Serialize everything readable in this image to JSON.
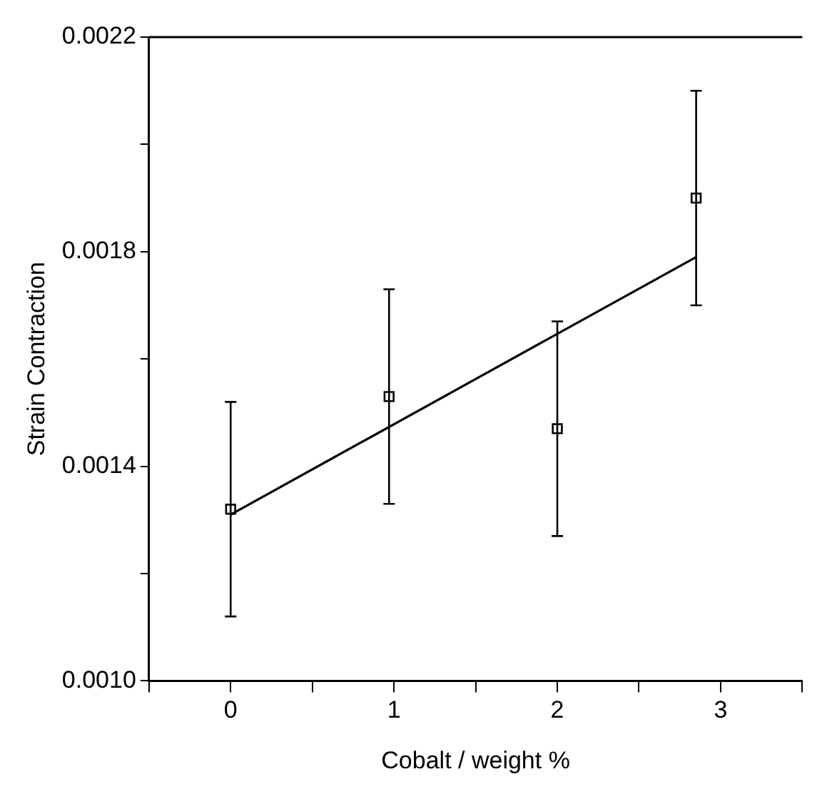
{
  "chart_data": {
    "type": "scatter",
    "xlabel": "Cobalt / weight %",
    "ylabel": "Strain Contraction",
    "xlim": [
      -0.5,
      3.5
    ],
    "ylim": [
      0.001,
      0.0022
    ],
    "xticks": [
      {
        "value": -0.5,
        "label": null
      },
      0,
      {
        "value": 0.5,
        "label": null
      },
      1,
      {
        "value": 1.5,
        "label": null
      },
      2,
      {
        "value": 2.5,
        "label": null
      },
      3,
      {
        "value": 3.5,
        "label": null
      }
    ],
    "yticks": [
      {
        "value": 0.001,
        "label": "0.0010"
      },
      {
        "value": 0.0012,
        "label": null
      },
      {
        "value": 0.0014,
        "label": "0.0014"
      },
      {
        "value": 0.0016,
        "label": null
      },
      {
        "value": 0.0018,
        "label": "0.0018"
      },
      {
        "value": 0.002,
        "label": null
      },
      {
        "value": 0.0022,
        "label": "0.0022"
      }
    ],
    "grid": false,
    "legend": false,
    "series": [
      {
        "type": "scatter",
        "color": "#000000",
        "marker": "square",
        "x": [
          0,
          0.97,
          2.0,
          2.85
        ],
        "values": [
          0.00132,
          0.00153,
          0.00147,
          0.0019
        ],
        "errors": [
          0.0002,
          0.0002,
          0.0002,
          0.0002
        ]
      },
      {
        "type": "line",
        "color": "#000000",
        "marker": "none",
        "line_style": "solid",
        "x": [
          0,
          2.85
        ],
        "values": [
          0.00131,
          0.00179
        ]
      }
    ]
  }
}
